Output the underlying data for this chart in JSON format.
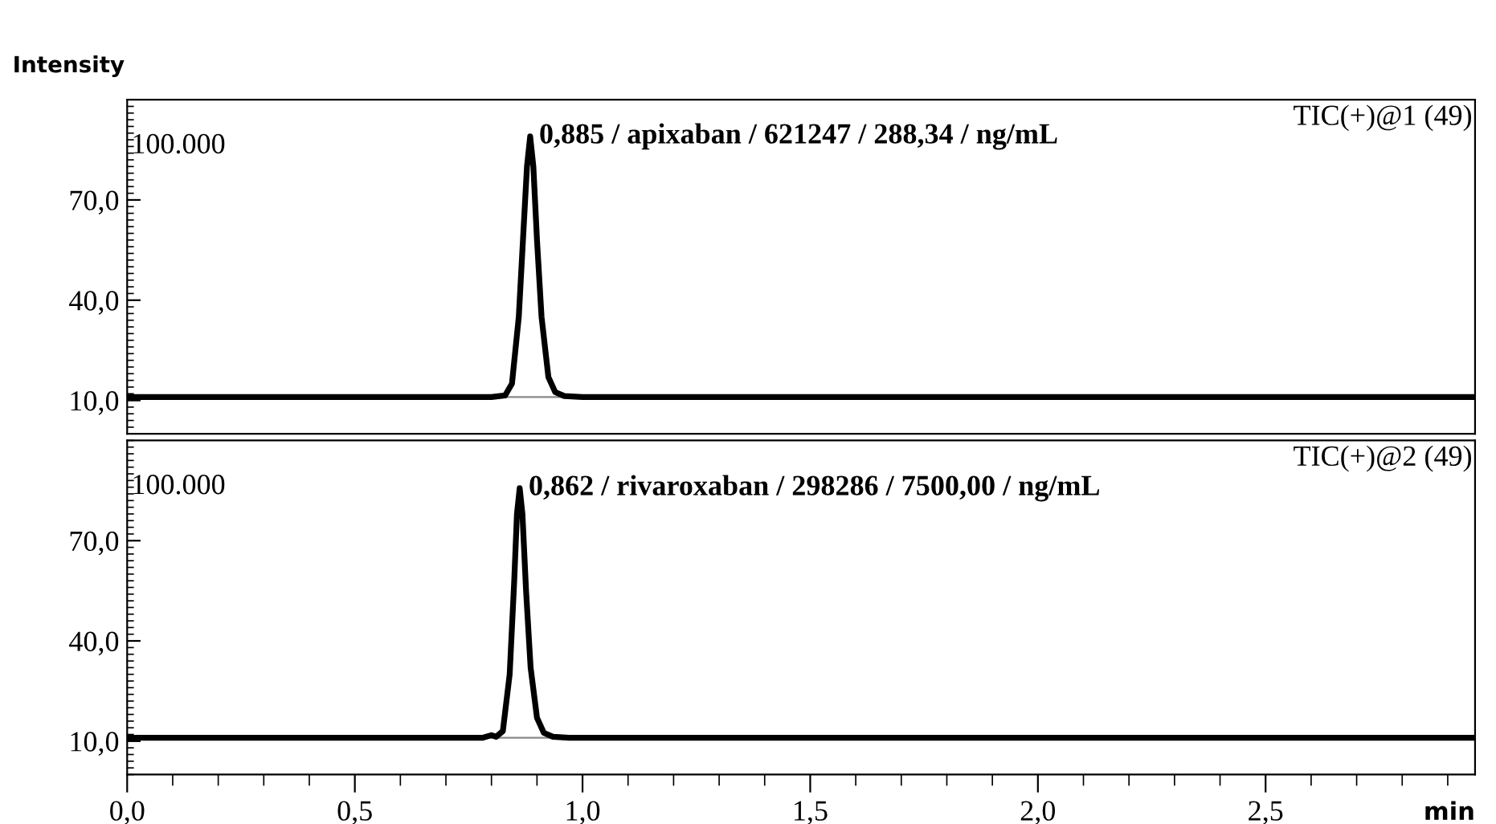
{
  "chart_data": [
    {
      "type": "line",
      "ylabel": "Intensity",
      "tick_labels": "y",
      "color": "#000000",
      "grid": false,
      "legend": false,
      "x": [
        0,
        0.8,
        0.83,
        0.845,
        0.86,
        0.87,
        0.878,
        0.885,
        0.892,
        0.9,
        0.91,
        0.925,
        0.94,
        0.96,
        1.0,
        2.96
      ],
      "values": [
        11,
        11,
        11.5,
        15,
        35,
        60,
        80,
        89,
        80,
        58,
        35,
        17,
        12.5,
        11.3,
        11,
        11
      ],
      "xlim": [
        0,
        2.96
      ],
      "ylim": [
        0,
        100
      ],
      "yticks": [
        {
          "value": 10,
          "label": "10,0"
        },
        {
          "value": 40,
          "label": "40,0"
        },
        {
          "value": 70,
          "label": "70,0"
        }
      ],
      "ref_lines": [
        {
          "axis": "y",
          "value": 11,
          "color": "#888888"
        }
      ],
      "annotations": [
        "100.000",
        "TIC(+)@1 (49)",
        {
          "text": "0,885 / apixaban / 621247 / 288,34 / ng/mL",
          "x": 0.885,
          "y": 89
        }
      ]
    },
    {
      "type": "line",
      "xlabel": "min",
      "color": "#000000",
      "grid": false,
      "legend": false,
      "x": [
        0,
        0.78,
        0.8,
        0.81,
        0.825,
        0.84,
        0.85,
        0.856,
        0.862,
        0.868,
        0.876,
        0.886,
        0.9,
        0.915,
        0.935,
        0.97,
        2.96
      ],
      "values": [
        11,
        11,
        11.8,
        11.3,
        13,
        30,
        58,
        78,
        85.7,
        78,
        55,
        32,
        17,
        12.5,
        11.3,
        11,
        11
      ],
      "xlim": [
        0,
        2.96
      ],
      "ylim": [
        0,
        100
      ],
      "xticks": [
        {
          "value": 0,
          "label": "0,0"
        },
        {
          "value": 0.1,
          "label": null
        },
        {
          "value": 0.2,
          "label": null
        },
        {
          "value": 0.3,
          "label": null
        },
        {
          "value": 0.4,
          "label": null
        },
        {
          "value": 0.5,
          "label": "0,5"
        },
        {
          "value": 0.6,
          "label": null
        },
        {
          "value": 0.7,
          "label": null
        },
        {
          "value": 0.8,
          "label": null
        },
        {
          "value": 0.9,
          "label": null
        },
        {
          "value": 1,
          "label": "1,0"
        },
        {
          "value": 1.1,
          "label": null
        },
        {
          "value": 1.2,
          "label": null
        },
        {
          "value": 1.3,
          "label": null
        },
        {
          "value": 1.4,
          "label": null
        },
        {
          "value": 1.5,
          "label": "1,5"
        },
        {
          "value": 1.6,
          "label": null
        },
        {
          "value": 1.7,
          "label": null
        },
        {
          "value": 1.8,
          "label": null
        },
        {
          "value": 1.9,
          "label": null
        },
        {
          "value": 2,
          "label": "2,0"
        },
        {
          "value": 2.1,
          "label": null
        },
        {
          "value": 2.2,
          "label": null
        },
        {
          "value": 2.3,
          "label": null
        },
        {
          "value": 2.4,
          "label": null
        },
        {
          "value": 2.5,
          "label": "2,5"
        },
        {
          "value": 2.6,
          "label": null
        },
        {
          "value": 2.7,
          "label": null
        },
        {
          "value": 2.8,
          "label": null
        },
        {
          "value": 2.9,
          "label": null
        }
      ],
      "yticks": [
        {
          "value": 10,
          "label": "10,0"
        },
        {
          "value": 40,
          "label": "40,0"
        },
        {
          "value": 70,
          "label": "70,0"
        }
      ],
      "ref_lines": [
        {
          "axis": "y",
          "value": 11,
          "color": "#888888"
        }
      ],
      "annotations": [
        "100.000",
        "TIC(+)@2 (49)",
        {
          "text": "0,862 / rivaroxaban / 298286 / 7500,00 / ng/mL",
          "x": 0.862,
          "y": 85.7
        }
      ]
    }
  ]
}
